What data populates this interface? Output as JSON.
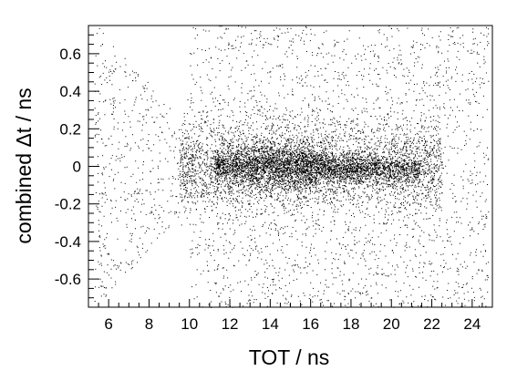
{
  "chart_data": {
    "type": "scatter",
    "title": "",
    "xlabel": "TOT / ns",
    "ylabel": "combined Δt / ns",
    "xlim": [
      5,
      25
    ],
    "ylim": [
      -0.75,
      0.75
    ],
    "x_ticks": [
      "6",
      "8",
      "10",
      "12",
      "14",
      "16",
      "18",
      "20",
      "22",
      "24"
    ],
    "y_ticks": [
      "-0.6",
      "-0.4",
      "-0.2",
      "0",
      "0.2",
      "0.4",
      "0.6"
    ],
    "grid": false,
    "legend": "none",
    "point_color": "#000000",
    "distribution": {
      "description": "dense 2D scatter: core near combined Δt ≈ 0 for TOT 11–21 ns, diffuse background at all TOT",
      "core": {
        "x_range": [
          11,
          21.5
        ],
        "y_center": 0.0,
        "peak_x": 14.5
      },
      "background": "uniform sparse points over full range, denser at low TOT widening spread"
    }
  }
}
